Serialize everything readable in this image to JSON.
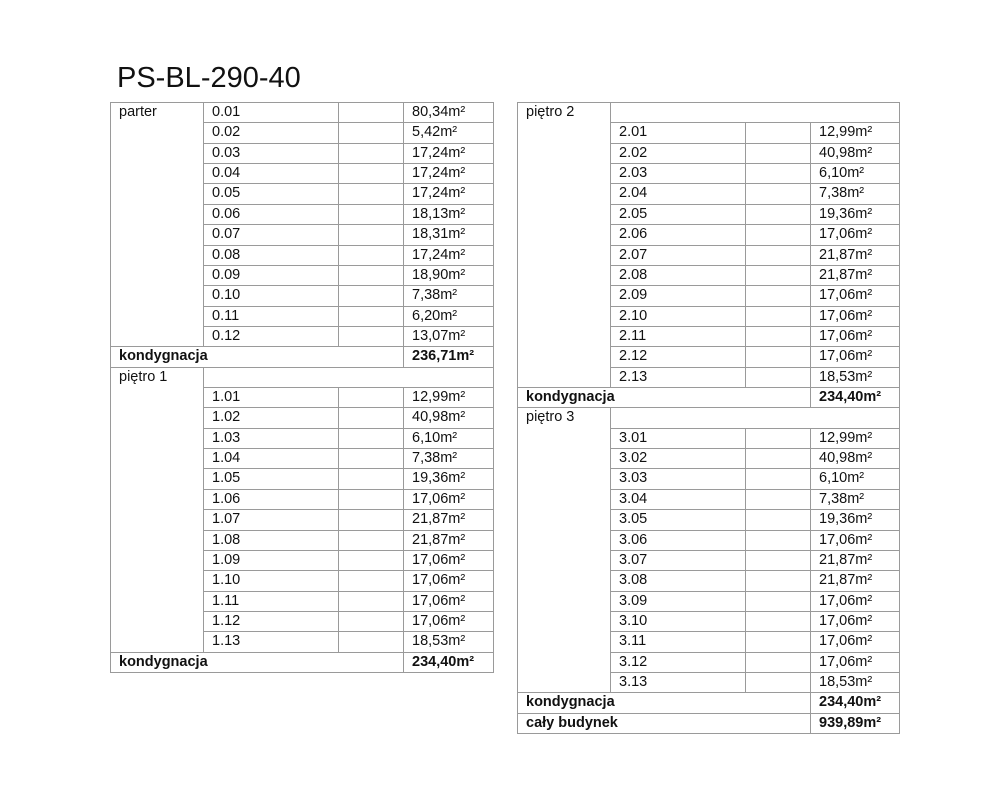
{
  "title": "PS-BL-290-40",
  "tables": [
    {
      "sections": [
        {
          "label": "parter",
          "label_row": false,
          "rooms": [
            [
              "0.01",
              "80,34m²"
            ],
            [
              "0.02",
              "5,42m²"
            ],
            [
              "0.03",
              "17,24m²"
            ],
            [
              "0.04",
              "17,24m²"
            ],
            [
              "0.05",
              "17,24m²"
            ],
            [
              "0.06",
              "18,13m²"
            ],
            [
              "0.07",
              "18,31m²"
            ],
            [
              "0.08",
              "17,24m²"
            ],
            [
              "0.09",
              "18,90m²"
            ],
            [
              "0.10",
              "7,38m²"
            ],
            [
              "0.11",
              "6,20m²"
            ],
            [
              "0.12",
              "13,07m²"
            ]
          ],
          "sum_label": "kondygnacja",
          "sum": "236,71m²"
        },
        {
          "label": "piętro 1",
          "label_row": true,
          "rooms": [
            [
              "1.01",
              "12,99m²"
            ],
            [
              "1.02",
              "40,98m²"
            ],
            [
              "1.03",
              "6,10m²"
            ],
            [
              "1.04",
              "7,38m²"
            ],
            [
              "1.05",
              "19,36m²"
            ],
            [
              "1.06",
              "17,06m²"
            ],
            [
              "1.07",
              "21,87m²"
            ],
            [
              "1.08",
              "21,87m²"
            ],
            [
              "1.09",
              "17,06m²"
            ],
            [
              "1.10",
              "17,06m²"
            ],
            [
              "1.11",
              "17,06m²"
            ],
            [
              "1.12",
              "17,06m²"
            ],
            [
              "1.13",
              "18,53m²"
            ]
          ],
          "sum_label": "kondygnacja",
          "sum": "234,40m²"
        }
      ]
    },
    {
      "sections": [
        {
          "label": "piętro 2",
          "label_row": true,
          "rooms": [
            [
              "2.01",
              "12,99m²"
            ],
            [
              "2.02",
              "40,98m²"
            ],
            [
              "2.03",
              "6,10m²"
            ],
            [
              "2.04",
              "7,38m²"
            ],
            [
              "2.05",
              "19,36m²"
            ],
            [
              "2.06",
              "17,06m²"
            ],
            [
              "2.07",
              "21,87m²"
            ],
            [
              "2.08",
              "21,87m²"
            ],
            [
              "2.09",
              "17,06m²"
            ],
            [
              "2.10",
              "17,06m²"
            ],
            [
              "2.11",
              "17,06m²"
            ],
            [
              "2.12",
              "17,06m²"
            ],
            [
              "2.13",
              "18,53m²"
            ]
          ],
          "sum_label": "kondygnacja",
          "sum": "234,40m²"
        },
        {
          "label": "piętro 3",
          "label_row": true,
          "rooms": [
            [
              "3.01",
              "12,99m²"
            ],
            [
              "3.02",
              "40,98m²"
            ],
            [
              "3.03",
              "6,10m²"
            ],
            [
              "3.04",
              "7,38m²"
            ],
            [
              "3.05",
              "19,36m²"
            ],
            [
              "3.06",
              "17,06m²"
            ],
            [
              "3.07",
              "21,87m²"
            ],
            [
              "3.08",
              "21,87m²"
            ],
            [
              "3.09",
              "17,06m²"
            ],
            [
              "3.10",
              "17,06m²"
            ],
            [
              "3.11",
              "17,06m²"
            ],
            [
              "3.12",
              "17,06m²"
            ],
            [
              "3.13",
              "18,53m²"
            ]
          ],
          "sum_label": "kondygnacja",
          "sum": "234,40m²"
        }
      ],
      "total": {
        "label": "cały budynek",
        "value": "939,89m²"
      }
    }
  ]
}
